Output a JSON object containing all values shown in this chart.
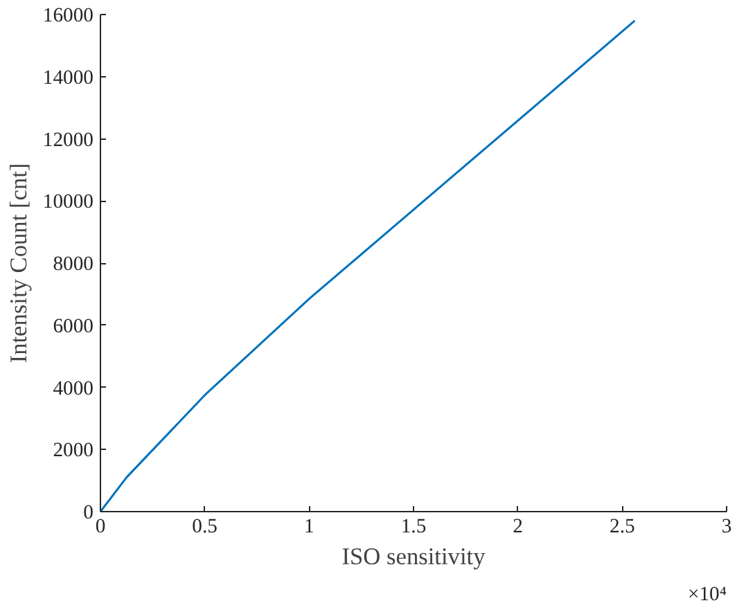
{
  "chart_data": {
    "type": "line",
    "xlabel": "ISO sensitivity",
    "ylabel": "Intensity Count [cnt]",
    "x": [
      0,
      0.125,
      0.5,
      1,
      2.56
    ],
    "series": [
      {
        "color": "#0072bd",
        "values": [
          0,
          1100,
          3750,
          6850,
          15800
        ]
      }
    ],
    "xlim": [
      0,
      3
    ],
    "ylim": [
      0,
      16000
    ],
    "xticks": [
      0,
      0.5,
      1,
      1.5,
      2,
      2.5,
      3
    ],
    "yticks": [
      0,
      2000,
      4000,
      6000,
      8000,
      10000,
      12000,
      14000,
      16000
    ],
    "annotations": [
      "×10⁴"
    ],
    "grid": false,
    "line_style": "solid"
  }
}
